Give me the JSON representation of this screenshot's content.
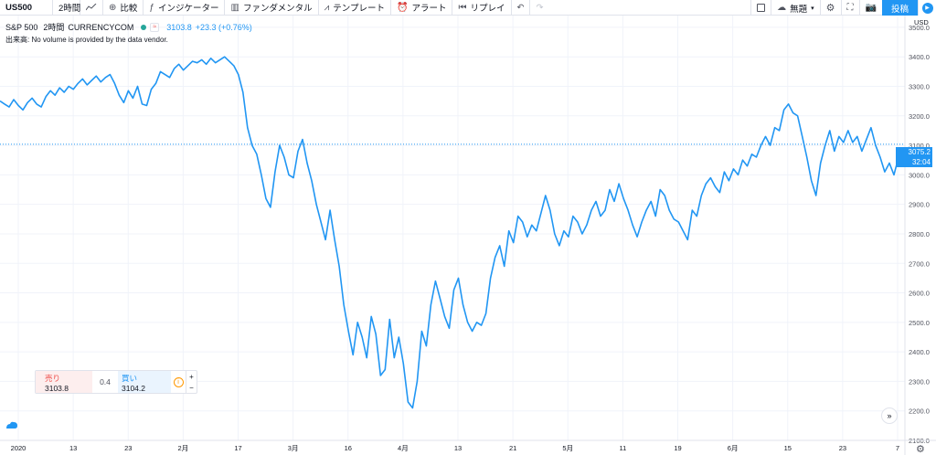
{
  "toolbar": {
    "symbol": "US500",
    "interval": "2時間",
    "compare": "比較",
    "indicators": "インジケーター",
    "fundamentals": "ファンダメンタル",
    "templates": "テンプレート",
    "alert": "アラート",
    "replay": "リプレイ",
    "layout_name": "無題",
    "publish": "投稿"
  },
  "legend": {
    "symbol_name": "S&P 500",
    "interval": "2時間",
    "source": "CURRENCYCOM",
    "chip": "≈",
    "last_price": "3103.8",
    "change": "+23.3 (+0.76%)",
    "volume_note": "出来高: No volume is provided by the data vendor."
  },
  "price_axis": {
    "currency": "USD",
    "ticks": [
      "3500.0",
      "3400.0",
      "3300.0",
      "3200.0",
      "3100.0",
      "3000.0",
      "2900.0",
      "2800.0",
      "2700.0",
      "2600.0",
      "2500.0",
      "2400.0",
      "2300.0",
      "2200.0",
      "2100.0"
    ],
    "current_price": "3075.2",
    "countdown": "32:04"
  },
  "time_axis": {
    "labels": [
      "2020",
      "13",
      "23",
      "2月",
      "17",
      "3月",
      "16",
      "4月",
      "13",
      "21",
      "5月",
      "11",
      "19",
      "6月",
      "15",
      "23",
      "7"
    ]
  },
  "trade": {
    "sell_label": "売り",
    "sell_price": "3103.8",
    "spread": "0.4",
    "buy_label": "買い",
    "buy_price": "3104.2",
    "plus": "+",
    "minus": "−"
  },
  "colors": {
    "line": "#2196f3",
    "accent": "#2196f3",
    "sell": "#ef5350",
    "grid": "#f0f3fa"
  },
  "chart_data": {
    "type": "line",
    "ylim": [
      2100,
      3540
    ],
    "reference_price": 3103.8,
    "series": [
      {
        "values": [
          3250,
          3240,
          3230,
          3255,
          3235,
          3220,
          3245,
          3260,
          3240,
          3230,
          3265,
          3285,
          3270,
          3295,
          3280,
          3300,
          3290,
          3310,
          3325,
          3305,
          3320,
          3335,
          3315,
          3330,
          3340,
          3310,
          3270,
          3245,
          3285,
          3260,
          3300,
          3240,
          3235,
          3290,
          3310,
          3350,
          3340,
          3330,
          3360,
          3375,
          3355,
          3370,
          3385,
          3380,
          3390,
          3375,
          3395,
          3380,
          3390,
          3400,
          3385,
          3370,
          3340,
          3280,
          3160,
          3100,
          3070,
          3000,
          2920,
          2890,
          3010,
          3100,
          3060,
          3000,
          2990,
          3080,
          3120,
          3040,
          2980,
          2900,
          2840,
          2780,
          2880,
          2780,
          2690,
          2560,
          2470,
          2390,
          2500,
          2450,
          2380,
          2520,
          2460,
          2320,
          2340,
          2510,
          2380,
          2450,
          2360,
          2230,
          2210,
          2300,
          2470,
          2420,
          2560,
          2640,
          2580,
          2520,
          2480,
          2610,
          2650,
          2560,
          2500,
          2470,
          2500,
          2490,
          2530,
          2650,
          2720,
          2760,
          2690,
          2810,
          2770,
          2860,
          2840,
          2790,
          2830,
          2810,
          2870,
          2930,
          2880,
          2800,
          2760,
          2810,
          2790,
          2860,
          2840,
          2800,
          2830,
          2880,
          2910,
          2860,
          2880,
          2950,
          2910,
          2970,
          2920,
          2880,
          2830,
          2790,
          2840,
          2880,
          2910,
          2860,
          2950,
          2930,
          2880,
          2850,
          2840,
          2810,
          2780,
          2880,
          2860,
          2930,
          2970,
          2990,
          2960,
          2940,
          3010,
          2980,
          3020,
          3000,
          3050,
          3030,
          3070,
          3060,
          3100,
          3130,
          3100,
          3160,
          3150,
          3220,
          3240,
          3210,
          3200,
          3130,
          3060,
          2980,
          2930,
          3040,
          3100,
          3150,
          3080,
          3130,
          3110,
          3150,
          3110,
          3130,
          3080,
          3120,
          3160,
          3100,
          3060,
          3010,
          3040,
          3000,
          3060,
          3075
        ]
      }
    ]
  }
}
